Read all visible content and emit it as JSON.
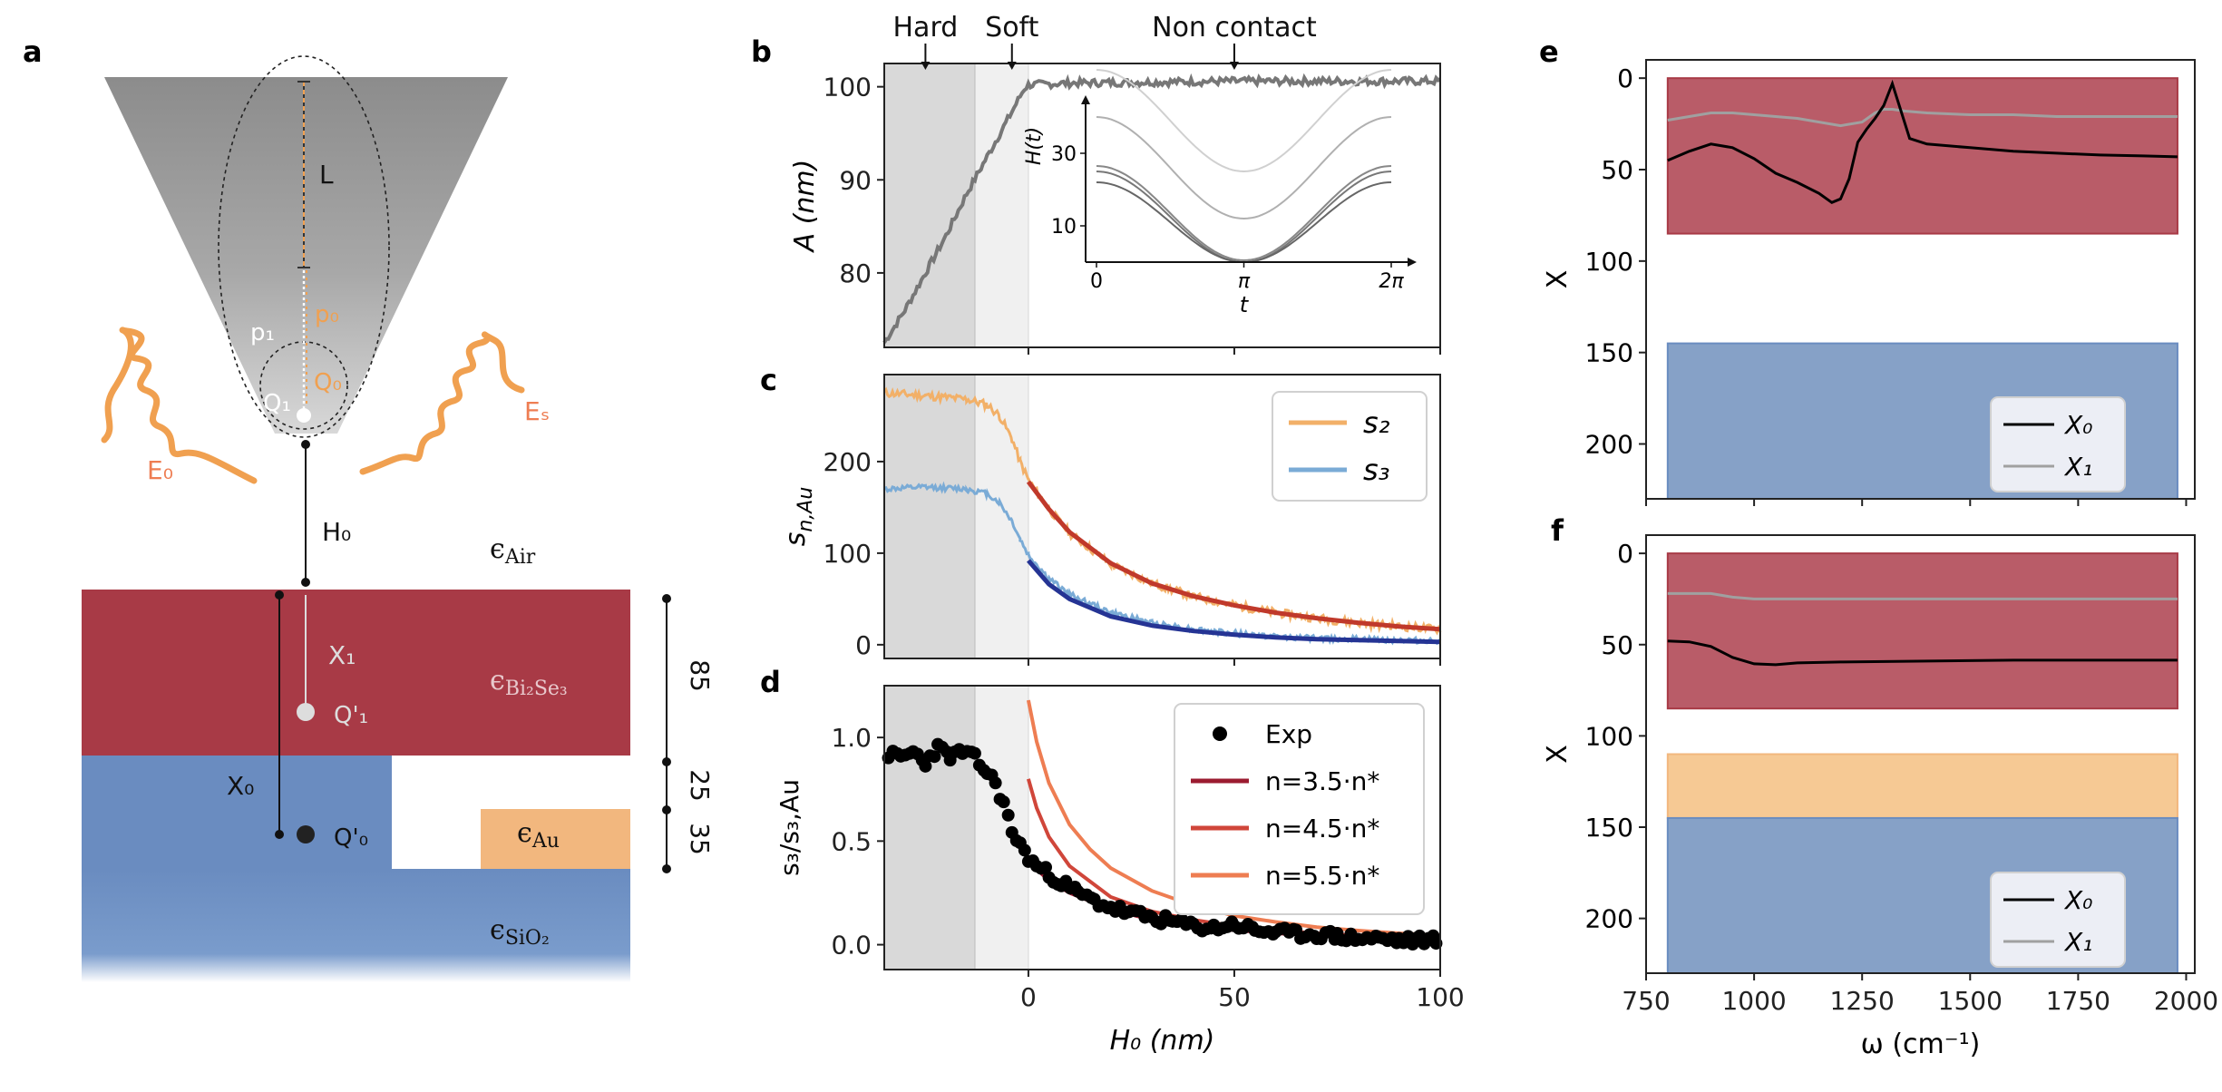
{
  "panels": {
    "a": "a",
    "b": "b",
    "c": "c",
    "d": "d",
    "e": "e",
    "f": "f"
  },
  "schematic": {
    "L": "L",
    "p0": "p₀",
    "p1": "p₁",
    "Q0": "Q₀",
    "Q1": "Q₁",
    "E0": "E₀",
    "Es": "Eₛ",
    "H0": "H₀",
    "X1": "X₁",
    "X0": "X₀",
    "Q1p": "Q'₁",
    "Q0p": "Q'₀",
    "eps_air": "Air",
    "eps_bise": "Bi₂Se₃",
    "eps_au": "Au",
    "eps_sio2": "SiO₂",
    "eps_symbol": "ϵ",
    "thick_85": "85",
    "thick_25": "25",
    "thick_35": "35",
    "colors": {
      "bi2se3": "#a83a46",
      "sio2": "#6a8cc0",
      "au": "#f2b77e",
      "orange": "#f0a050",
      "tip": "#9a9a9a"
    }
  },
  "chart_data": [
    {
      "id": "b",
      "type": "line",
      "xlabel": "",
      "ylabel": "A (nm)",
      "xlim": [
        -35,
        100
      ],
      "ylim": [
        72,
        102.5
      ],
      "yticks": [
        80,
        90,
        100
      ],
      "xticks": [
        0,
        50,
        100
      ],
      "regions": [
        {
          "name": "Hard",
          "x": [
            -35,
            -13
          ],
          "color": "#d9d9d9"
        },
        {
          "name": "Soft",
          "x": [
            -13,
            0
          ],
          "color": "#f0f0f0"
        }
      ],
      "annotations": [
        {
          "text": "Hard",
          "x": -25
        },
        {
          "text": "Soft",
          "x": -4
        },
        {
          "text": "Non contact",
          "x": 50
        }
      ],
      "series": [
        {
          "name": "A",
          "color": "#777777",
          "x": [
            -35,
            -30,
            -25,
            -20,
            -15,
            -10,
            -5,
            -1,
            0,
            10,
            30,
            50,
            70,
            100
          ],
          "y": [
            72.5,
            76,
            80,
            84,
            88.5,
            92.5,
            96.5,
            99.8,
            100.2,
            100.4,
            100.5,
            100.6,
            100.6,
            100.6
          ]
        }
      ],
      "inset": {
        "type": "line",
        "xlabel": "t",
        "ylabel": "H(t)",
        "xticklabels": [
          "0",
          "π",
          "2π"
        ],
        "yticks": [
          10,
          30
        ],
        "ylim": [
          0,
          42
        ],
        "series": [
          {
            "offset": 25,
            "amplitude": 14,
            "color": "#d0d0d0"
          },
          {
            "offset": 12,
            "amplitude": 14,
            "color": "#b0b0b0"
          },
          {
            "offset": 0.5,
            "amplitude": 13,
            "color": "#888888"
          },
          {
            "offset": 0,
            "amplitude": 12.5,
            "color": "#777777"
          },
          {
            "offset": 0,
            "amplitude": 11,
            "color": "#666666"
          }
        ]
      }
    },
    {
      "id": "c",
      "type": "line",
      "xlabel": "",
      "ylabel": "s_n,Au",
      "xlim": [
        -35,
        100
      ],
      "ylim": [
        -15,
        295
      ],
      "yticks": [
        0,
        100,
        200
      ],
      "xticks": [
        0,
        50,
        100
      ],
      "legend": [
        "s₂",
        "s₃"
      ],
      "series": [
        {
          "name": "s₂",
          "color": "#f2b068",
          "x": [
            -35,
            -25,
            -15,
            -10,
            -7,
            -4,
            -2,
            0,
            5,
            10,
            20,
            30,
            40,
            50,
            60,
            70,
            80,
            90,
            100
          ],
          "y": [
            275,
            272,
            268,
            262,
            250,
            225,
            200,
            180,
            148,
            122,
            88,
            67,
            53,
            43,
            35,
            29,
            24,
            20,
            17
          ]
        },
        {
          "name": "s₃",
          "color": "#7aabd6",
          "x": [
            -35,
            -25,
            -15,
            -10,
            -7,
            -4,
            -2,
            0,
            5,
            10,
            20,
            30,
            40,
            50,
            60,
            70,
            80,
            90,
            100
          ],
          "y": [
            170,
            172,
            170,
            165,
            155,
            135,
            115,
            98,
            72,
            55,
            35,
            24,
            17,
            12,
            9,
            7,
            6,
            5,
            4
          ]
        },
        {
          "name": "s₂ fit",
          "color": "#c0392b",
          "x": [
            0,
            5,
            10,
            20,
            30,
            40,
            50,
            60,
            70,
            80,
            90,
            100
          ],
          "y": [
            178,
            148,
            123,
            89,
            67,
            53,
            43,
            35,
            29,
            24,
            20,
            17
          ]
        },
        {
          "name": "s₃ fit",
          "color": "#253494",
          "x": [
            0,
            5,
            10,
            20,
            30,
            40,
            50,
            60,
            70,
            80,
            90,
            100
          ],
          "y": [
            92,
            66,
            50,
            31,
            21,
            15,
            11,
            8,
            6,
            5,
            4,
            3
          ]
        }
      ]
    },
    {
      "id": "d",
      "type": "scatter",
      "xlabel": "H₀ (nm)",
      "ylabel": "s₃/s₃,Au",
      "xlim": [
        -35,
        100
      ],
      "ylim": [
        -0.12,
        1.25
      ],
      "yticks": [
        0.0,
        0.5,
        1.0
      ],
      "yticklabels": [
        "0.0",
        "0.5",
        "1.0"
      ],
      "xticks": [
        0,
        50,
        100
      ],
      "legend": [
        "Exp",
        "n=3.5·n*",
        "n=4.5·n*",
        "n=5.5·n*"
      ],
      "series": [
        {
          "name": "Exp",
          "color": "#000000",
          "x": [
            -34,
            -31,
            -28,
            -25,
            -22,
            -19,
            -16,
            -13,
            -10,
            -8,
            -6,
            -4,
            -2,
            0,
            2,
            5,
            8,
            12,
            16,
            20,
            25,
            30,
            35,
            40,
            45,
            50,
            55,
            60,
            65,
            70,
            75,
            80,
            85,
            90,
            95,
            99
          ],
          "y": [
            0.92,
            0.9,
            0.93,
            0.88,
            0.95,
            0.91,
            0.93,
            0.9,
            0.83,
            0.78,
            0.68,
            0.55,
            0.48,
            0.42,
            0.38,
            0.34,
            0.3,
            0.25,
            0.21,
            0.18,
            0.15,
            0.13,
            0.11,
            0.09,
            0.08,
            0.1,
            0.07,
            0.06,
            0.05,
            0.05,
            0.04,
            0.03,
            0.03,
            0.02,
            0.02,
            0.03
          ]
        },
        {
          "name": "n=3.5·n*",
          "color": "#9b1b30",
          "x": [
            0,
            5,
            10,
            20,
            30,
            40,
            50,
            60,
            70,
            80,
            90,
            100
          ],
          "y": [
            0.4,
            0.31,
            0.25,
            0.17,
            0.12,
            0.09,
            0.07,
            0.055,
            0.045,
            0.035,
            0.03,
            0.025
          ]
        },
        {
          "name": "n=4.5·n*",
          "color": "#d0463a",
          "x": [
            0,
            2,
            5,
            10,
            20,
            30,
            40,
            50,
            60,
            70,
            80,
            90,
            100
          ],
          "y": [
            0.8,
            0.66,
            0.52,
            0.38,
            0.23,
            0.16,
            0.12,
            0.09,
            0.07,
            0.055,
            0.045,
            0.037,
            0.03
          ]
        },
        {
          "name": "n=5.5·n*",
          "color": "#ee7d52",
          "x": [
            0,
            2,
            5,
            10,
            15,
            20,
            30,
            40,
            50,
            60,
            70,
            80,
            90,
            100
          ],
          "y": [
            1.18,
            0.98,
            0.78,
            0.58,
            0.46,
            0.37,
            0.26,
            0.19,
            0.14,
            0.11,
            0.085,
            0.068,
            0.055,
            0.045
          ]
        }
      ]
    },
    {
      "id": "e",
      "type": "line",
      "xlabel": "",
      "ylabel": "X",
      "xlim": [
        750,
        2020
      ],
      "ylim": [
        230,
        -10
      ],
      "yticks": [
        0,
        50,
        100,
        150,
        200
      ],
      "xticks": [
        750,
        1000,
        1250,
        1500,
        1750,
        2000
      ],
      "bands": [
        {
          "y": [
            0,
            85
          ],
          "x": [
            800,
            1980
          ],
          "color": "#b95c68",
          "edge": "#a83a46"
        },
        {
          "y": [
            145,
            230
          ],
          "x": [
            800,
            1980
          ],
          "color": "#86a1c7",
          "edge": "#6a8cc0"
        }
      ],
      "legend": [
        "X₀",
        "X₁"
      ],
      "series": [
        {
          "name": "X₀",
          "color": "#000000",
          "x": [
            800,
            850,
            900,
            950,
            1000,
            1050,
            1100,
            1150,
            1180,
            1200,
            1220,
            1240,
            1260,
            1280,
            1300,
            1320,
            1340,
            1360,
            1400,
            1500,
            1600,
            1700,
            1800,
            1900,
            1980
          ],
          "y": [
            45,
            40,
            36,
            38,
            44,
            52,
            57,
            63,
            68,
            66,
            55,
            35,
            28,
            22,
            15,
            3,
            18,
            33,
            36,
            38,
            40,
            41,
            42,
            42.5,
            43
          ]
        },
        {
          "name": "X₁",
          "color": "#a0a0a0",
          "x": [
            800,
            850,
            900,
            950,
            1000,
            1100,
            1200,
            1250,
            1280,
            1300,
            1320,
            1350,
            1400,
            1500,
            1600,
            1700,
            1800,
            1900,
            1980
          ],
          "y": [
            23,
            21,
            19,
            19,
            20,
            22,
            26,
            24,
            19,
            17,
            17,
            18,
            19,
            20,
            20,
            21,
            21,
            21,
            21
          ]
        }
      ]
    },
    {
      "id": "f",
      "type": "line",
      "xlabel": "ω (cm⁻¹)",
      "ylabel": "X",
      "xlim": [
        750,
        2020
      ],
      "ylim": [
        230,
        -10
      ],
      "yticks": [
        0,
        50,
        100,
        150,
        200
      ],
      "xticks": [
        750,
        1000,
        1250,
        1500,
        1750,
        2000
      ],
      "bands": [
        {
          "y": [
            0,
            85
          ],
          "x": [
            800,
            1980
          ],
          "color": "#b95c68",
          "edge": "#a83a46"
        },
        {
          "y": [
            110,
            145
          ],
          "x": [
            800,
            1980
          ],
          "color": "#f6c994",
          "edge": "#f2b77e"
        },
        {
          "y": [
            145,
            230
          ],
          "x": [
            800,
            1980
          ],
          "color": "#86a1c7",
          "edge": "#6a8cc0"
        }
      ],
      "legend": [
        "X₀",
        "X₁"
      ],
      "series": [
        {
          "name": "X₀",
          "color": "#000000",
          "x": [
            800,
            850,
            900,
            950,
            1000,
            1050,
            1100,
            1200,
            1400,
            1600,
            1800,
            1980
          ],
          "y": [
            48,
            48.5,
            51,
            57,
            60.5,
            61,
            60,
            59.5,
            59,
            58.5,
            58.5,
            58.5
          ]
        },
        {
          "name": "X₁",
          "color": "#a0a0a0",
          "x": [
            800,
            900,
            950,
            1000,
            1200,
            1500,
            1800,
            1980
          ],
          "y": [
            22,
            22,
            24,
            25,
            25,
            25,
            25,
            25
          ]
        }
      ]
    }
  ]
}
